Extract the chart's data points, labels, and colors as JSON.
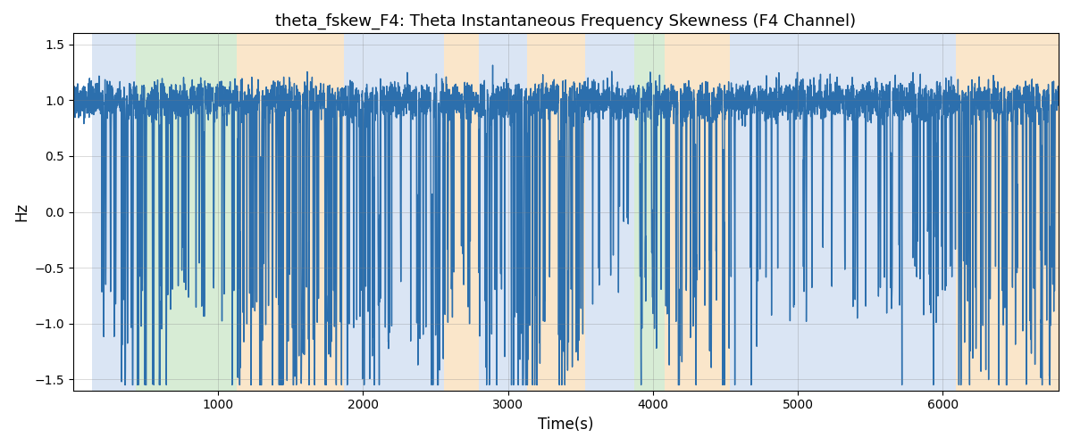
{
  "title": "theta_fskew_F4: Theta Instantaneous Frequency Skewness (F4 Channel)",
  "xlabel": "Time(s)",
  "ylabel": "Hz",
  "xlim": [
    0,
    6800
  ],
  "ylim": [
    -1.6,
    1.6
  ],
  "yticks": [
    -1.5,
    -1.0,
    -0.5,
    0.0,
    0.5,
    1.0,
    1.5
  ],
  "xticks": [
    1000,
    2000,
    3000,
    4000,
    5000,
    6000
  ],
  "line_color": "#2c6fad",
  "line_width": 1.0,
  "bg_regions": [
    {
      "start": 130,
      "end": 430,
      "color": "#aec6e8",
      "alpha": 0.45
    },
    {
      "start": 430,
      "end": 1130,
      "color": "#a8d5a2",
      "alpha": 0.45
    },
    {
      "start": 1130,
      "end": 1870,
      "color": "#f5c98a",
      "alpha": 0.45
    },
    {
      "start": 1870,
      "end": 2560,
      "color": "#aec6e8",
      "alpha": 0.45
    },
    {
      "start": 2560,
      "end": 2800,
      "color": "#f5c98a",
      "alpha": 0.45
    },
    {
      "start": 2800,
      "end": 3130,
      "color": "#aec6e8",
      "alpha": 0.45
    },
    {
      "start": 3130,
      "end": 3530,
      "color": "#f5c98a",
      "alpha": 0.45
    },
    {
      "start": 3530,
      "end": 3870,
      "color": "#aec6e8",
      "alpha": 0.45
    },
    {
      "start": 3870,
      "end": 4080,
      "color": "#a8d5a2",
      "alpha": 0.45
    },
    {
      "start": 4080,
      "end": 4530,
      "color": "#f5c98a",
      "alpha": 0.45
    },
    {
      "start": 4530,
      "end": 6090,
      "color": "#aec6e8",
      "alpha": 0.45
    },
    {
      "start": 6090,
      "end": 6800,
      "color": "#f5c98a",
      "alpha": 0.45
    }
  ],
  "figsize": [
    12.0,
    5.0
  ],
  "dpi": 100,
  "spike_regions": [
    {
      "start": 130,
      "end": 680,
      "density": 0.06,
      "min_depth": 1.6,
      "max_depth": 2.8
    },
    {
      "start": 680,
      "end": 1130,
      "density": 0.04,
      "min_depth": 1.2,
      "max_depth": 2.0
    },
    {
      "start": 1130,
      "end": 1870,
      "density": 0.09,
      "min_depth": 1.5,
      "max_depth": 2.8
    },
    {
      "start": 1870,
      "end": 2560,
      "density": 0.07,
      "min_depth": 1.4,
      "max_depth": 2.6
    },
    {
      "start": 2560,
      "end": 2800,
      "density": 0.05,
      "min_depth": 1.2,
      "max_depth": 2.0
    },
    {
      "start": 2800,
      "end": 3130,
      "density": 0.08,
      "min_depth": 1.5,
      "max_depth": 2.8
    },
    {
      "start": 3130,
      "end": 3530,
      "density": 0.09,
      "min_depth": 1.5,
      "max_depth": 2.8
    },
    {
      "start": 3530,
      "end": 3870,
      "density": 0.03,
      "min_depth": 1.0,
      "max_depth": 1.8
    },
    {
      "start": 3870,
      "end": 4080,
      "density": 0.06,
      "min_depth": 1.3,
      "max_depth": 2.2
    },
    {
      "start": 4080,
      "end": 4530,
      "density": 0.07,
      "min_depth": 1.4,
      "max_depth": 2.5
    },
    {
      "start": 4530,
      "end": 6090,
      "density": 0.04,
      "min_depth": 1.2,
      "max_depth": 2.0
    },
    {
      "start": 6090,
      "end": 6800,
      "density": 0.08,
      "min_depth": 1.4,
      "max_depth": 2.5
    }
  ]
}
